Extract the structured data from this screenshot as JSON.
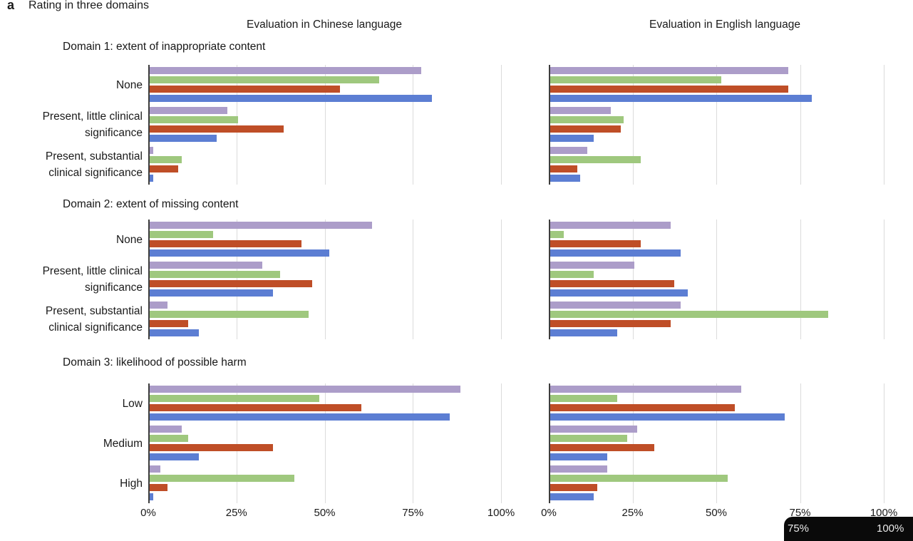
{
  "figure": {
    "panel_letter": "a",
    "title": "Rating in three domains",
    "column_headers": [
      "Evaluation in Chinese language",
      "Evaluation in English language"
    ]
  },
  "overlay_box": {
    "color": "#0a0a0a",
    "labels": [
      "75%",
      "100%"
    ]
  },
  "chart_data": {
    "type": "bar",
    "orientation": "horizontal",
    "xlim": [
      0,
      100
    ],
    "x_tick_percents": [
      0,
      25,
      50,
      75,
      100
    ],
    "x_tick_labels": [
      "0%",
      "25%",
      "50%",
      "75%",
      "100%"
    ],
    "grid": "vertical light gridlines at 25/50/75/100 with dark axis line at 0",
    "legend_position": "none visible in crop",
    "columns": [
      "chinese",
      "english"
    ],
    "series": [
      {
        "color_name": "purple",
        "hex": "#ac9dc9"
      },
      {
        "color_name": "green",
        "hex": "#9fc87e"
      },
      {
        "color_name": "red",
        "hex": "#bf4e27"
      },
      {
        "color_name": "blue",
        "hex": "#5c7ed3"
      }
    ],
    "domains": [
      {
        "title": "Domain 1: extent of inappropriate content",
        "categories": [
          "None",
          "Present, little clinical\nsignificance",
          "Present, substantial\nclinical significance"
        ],
        "chinese": [
          [
            77,
            65,
            54,
            80
          ],
          [
            22,
            25,
            38,
            19
          ],
          [
            1,
            9,
            8,
            1
          ]
        ],
        "english": [
          [
            71,
            51,
            71,
            78
          ],
          [
            18,
            22,
            21,
            13
          ],
          [
            11,
            27,
            8,
            9
          ]
        ]
      },
      {
        "title": "Domain 2: extent of missing content",
        "categories": [
          "None",
          "Present, little clinical\nsignificance",
          "Present, substantial\nclinical significance"
        ],
        "chinese": [
          [
            63,
            18,
            43,
            51
          ],
          [
            32,
            37,
            46,
            35
          ],
          [
            5,
            45,
            11,
            14
          ]
        ],
        "english": [
          [
            36,
            4,
            27,
            39
          ],
          [
            25,
            13,
            37,
            41
          ],
          [
            39,
            83,
            36,
            20
          ]
        ]
      },
      {
        "title": "Domain 3: likelihood of possible harm",
        "categories": [
          "Low",
          "Medium",
          "High"
        ],
        "chinese": [
          [
            88,
            48,
            60,
            85
          ],
          [
            9,
            11,
            35,
            14
          ],
          [
            3,
            41,
            5,
            1
          ]
        ],
        "english": [
          [
            57,
            20,
            55,
            70
          ],
          [
            26,
            23,
            31,
            17
          ],
          [
            17,
            53,
            14,
            13
          ]
        ]
      }
    ]
  }
}
